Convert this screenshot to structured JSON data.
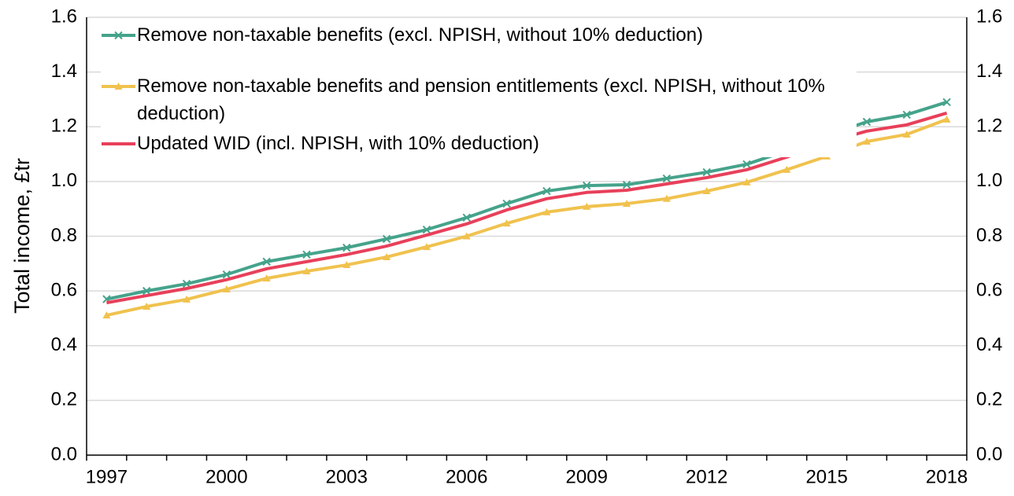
{
  "chart_data": {
    "type": "line",
    "y_label": "Total income, £tr",
    "categories": [
      1997,
      null,
      null,
      2000,
      null,
      null,
      2003,
      null,
      null,
      2006,
      null,
      null,
      2009,
      null,
      null,
      2012,
      null,
      null,
      2015,
      null,
      null,
      2018
    ],
    "series": [
      {
        "name": "Remove non-taxable benefits (excl. NPISH, without 10% deduction)",
        "color": "#45a38b",
        "marker": "x",
        "values": [
          0.57,
          0.6,
          0.626,
          0.66,
          0.707,
          0.733,
          0.758,
          0.79,
          0.824,
          0.868,
          0.919,
          0.965,
          0.985,
          0.988,
          1.011,
          1.034,
          1.063,
          1.112,
          1.169,
          1.218,
          1.244,
          1.29
        ]
      },
      {
        "name": "Remove non-taxable benefits and pension entitlements (excl. NPISH, without 10% deduction)",
        "color": "#f0c24e",
        "marker": "triangle",
        "values": [
          0.511,
          0.543,
          0.569,
          0.606,
          0.646,
          0.672,
          0.695,
          0.724,
          0.761,
          0.8,
          0.847,
          0.888,
          0.908,
          0.919,
          0.937,
          0.965,
          0.997,
          1.043,
          1.092,
          1.146,
          1.172,
          1.227
        ]
      },
      {
        "name": "Updated WID (incl. NPISH, with 10% deduction)",
        "color": "#e8405a",
        "values": [
          0.557,
          0.583,
          0.609,
          0.641,
          0.681,
          0.707,
          0.733,
          0.764,
          0.804,
          0.845,
          0.896,
          0.937,
          0.96,
          0.968,
          0.991,
          1.014,
          1.043,
          1.089,
          1.143,
          1.184,
          1.207,
          1.25
        ]
      }
    ],
    "ylim": [
      0,
      1.6
    ],
    "yticks": [
      {
        "value": 0,
        "label": "0.0"
      },
      {
        "value": 0.2,
        "label": "0.2"
      },
      {
        "value": 0.4,
        "label": "0.4"
      },
      {
        "value": 0.6,
        "label": "0.6"
      },
      {
        "value": 0.8,
        "label": "0.8"
      },
      {
        "value": 1,
        "label": "1.0"
      },
      {
        "value": 1.2,
        "label": "1.2"
      },
      {
        "value": 1.4,
        "label": "1.4"
      },
      {
        "value": 1.6,
        "label": "1.6"
      }
    ],
    "y2lim": [
      0,
      1.6
    ],
    "y2ticks": [
      {
        "value": 0,
        "label": "0.0"
      },
      {
        "value": 0.2,
        "label": "0.2"
      },
      {
        "value": 0.4,
        "label": "0.4"
      },
      {
        "value": 0.6,
        "label": "0.6"
      },
      {
        "value": 0.8,
        "label": "0.8"
      },
      {
        "value": 1,
        "label": "1.0"
      },
      {
        "value": 1.2,
        "label": "1.2"
      },
      {
        "value": 1.4,
        "label": "1.4"
      },
      {
        "value": 1.6,
        "label": "1.6"
      }
    ],
    "grid": true,
    "legend": "top-left"
  }
}
